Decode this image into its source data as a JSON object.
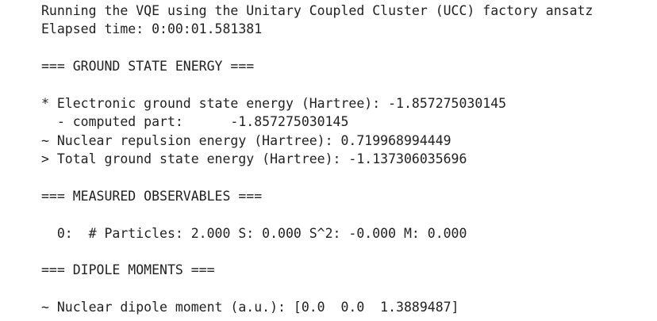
{
  "output": {
    "lines": [
      "Running the VQE using the Unitary Coupled Cluster (UCC) factory ansatz",
      "Elapsed time: 0:00:01.581381",
      "",
      "=== GROUND STATE ENERGY ===",
      "",
      "* Electronic ground state energy (Hartree): -1.857275030145",
      "  - computed part:      -1.857275030145",
      "~ Nuclear repulsion energy (Hartree): 0.719968994449",
      "> Total ground state energy (Hartree): -1.137306035696",
      "",
      "=== MEASURED OBSERVABLES ===",
      "",
      "  0:  # Particles: 2.000 S: 0.000 S^2: -0.000 M: 0.000",
      "",
      "=== DIPOLE MOMENTS ===",
      "",
      "~ Nuclear dipole moment (a.u.): [0.0  0.0  1.3889487]"
    ]
  }
}
